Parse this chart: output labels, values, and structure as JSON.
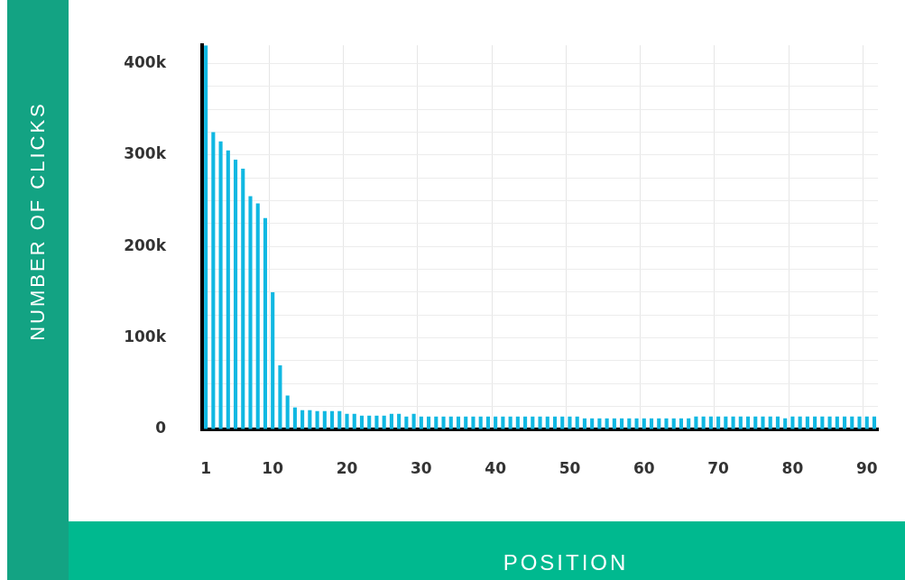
{
  "chart_data": {
    "type": "bar",
    "xlabel": "POSITION",
    "ylabel": "NUMBER OF CLICKS",
    "categories": [
      "1",
      null,
      null,
      null,
      null,
      null,
      null,
      null,
      null,
      "10",
      null,
      null,
      null,
      null,
      null,
      null,
      null,
      null,
      null,
      "20",
      null,
      null,
      null,
      null,
      null,
      null,
      null,
      null,
      null,
      "30",
      null,
      null,
      null,
      null,
      null,
      null,
      null,
      null,
      null,
      "40",
      null,
      null,
      null,
      null,
      null,
      null,
      null,
      null,
      null,
      "50",
      null,
      null,
      null,
      null,
      null,
      null,
      null,
      null,
      null,
      "60",
      null,
      null,
      null,
      null,
      null,
      null,
      null,
      null,
      null,
      "70",
      null,
      null,
      null,
      null,
      null,
      null,
      null,
      null,
      null,
      "80",
      null,
      null,
      null,
      null,
      null,
      null,
      null,
      null,
      null,
      "90",
      null
    ],
    "values": [
      420000,
      325000,
      315000,
      305000,
      295000,
      285000,
      255000,
      247000,
      231000,
      150000,
      70000,
      37000,
      24000,
      21000,
      21000,
      20000,
      20000,
      20000,
      20000,
      17000,
      17000,
      15000,
      15000,
      15000,
      15000,
      17000,
      17000,
      14000,
      17000,
      14000,
      14000,
      14000,
      14000,
      14000,
      14000,
      14000,
      14000,
      14000,
      14000,
      14000,
      14000,
      14000,
      14000,
      14000,
      14000,
      14000,
      14000,
      14000,
      14000,
      14000,
      14000,
      12000,
      12000,
      12000,
      12000,
      12000,
      12000,
      12000,
      12000,
      12000,
      12000,
      12000,
      12000,
      12000,
      12000,
      12000,
      14000,
      14000,
      14000,
      14000,
      14000,
      14000,
      14000,
      14000,
      14000,
      14000,
      14000,
      14000,
      12000,
      14000,
      14000,
      14000,
      14000,
      14000,
      14000,
      14000,
      14000,
      14000,
      14000,
      14000,
      14000
    ],
    "color": "#10b8e2",
    "ylim": [
      0,
      420000
    ],
    "yticks": [
      {
        "value": 0,
        "label": "0"
      },
      {
        "value": 25000,
        "label": null
      },
      {
        "value": 50000,
        "label": null
      },
      {
        "value": 75000,
        "label": null
      },
      {
        "value": 100000,
        "label": "100k"
      },
      {
        "value": 125000,
        "label": null
      },
      {
        "value": 150000,
        "label": null
      },
      {
        "value": 175000,
        "label": null
      },
      {
        "value": 200000,
        "label": "200k"
      },
      {
        "value": 225000,
        "label": null
      },
      {
        "value": 250000,
        "label": null
      },
      {
        "value": 275000,
        "label": null
      },
      {
        "value": 300000,
        "label": "300k"
      },
      {
        "value": 325000,
        "label": null
      },
      {
        "value": 350000,
        "label": null
      },
      {
        "value": 375000,
        "label": null
      },
      {
        "value": 400000,
        "label": "400k"
      }
    ],
    "grid": true
  }
}
